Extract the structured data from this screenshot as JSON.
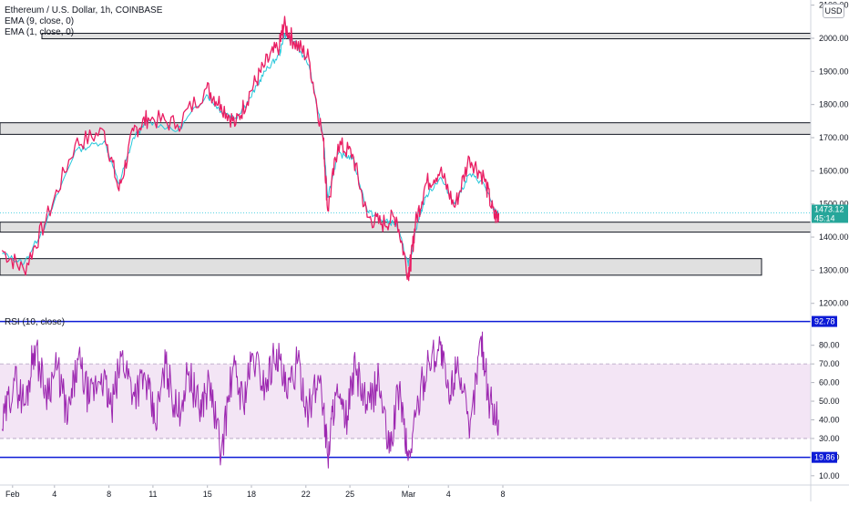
{
  "header": {
    "title": "Ethereum / U.S. Dollar, 1h, COINBASE",
    "indicators": [
      "EMA (9, close, 0)",
      "EMA (1, close, 0)"
    ],
    "currency_badge": "USD"
  },
  "rsi_panel": {
    "label": "RSI (10, close)",
    "upper_level_label": "92.78",
    "lower_level_label": "19.86"
  },
  "price_badge": {
    "price": "1473.12",
    "countdown": "45:14"
  },
  "colors": {
    "price_line": "#e91e63",
    "ema_line": "#26c6da",
    "rsi_line": "#9c27b0",
    "rsi_band": "#f3e5f5",
    "level_line": "#0d1bd6",
    "zone_fill": "#e0e0e0",
    "badge_bg": "#26a69a"
  },
  "chart_data": [
    {
      "type": "line",
      "title": "Ethereum / U.S. Dollar, 1h, COINBASE",
      "x_ticks": [
        "Feb",
        "4",
        "8",
        "11",
        "15",
        "18",
        "22",
        "25",
        "Mar",
        "4",
        "8"
      ],
      "y_ticks": [
        2100,
        2000,
        1900,
        1800,
        1700,
        1600,
        1500,
        1400,
        1300,
        1200
      ],
      "ylim": [
        1180,
        2110
      ],
      "last_price": 1473.12,
      "series": [
        {
          "name": "EMA (9, close, 0)",
          "role": "ema",
          "x": [
            0,
            1.5,
            3,
            5,
            7,
            8,
            9,
            10,
            12,
            14,
            15,
            16,
            17,
            18,
            19,
            19.3,
            20,
            21,
            22,
            22.3,
            23,
            24,
            25,
            26,
            27,
            27.8,
            28,
            28.3,
            29,
            30,
            31,
            32,
            33,
            33.7,
            34
          ],
          "values": [
            1350,
            1320,
            1440,
            1660,
            1690,
            1560,
            1700,
            1750,
            1720,
            1830,
            1780,
            1760,
            1820,
            1900,
            1950,
            2010,
            1990,
            1920,
            1700,
            1520,
            1650,
            1640,
            1480,
            1450,
            1440,
            1320,
            1340,
            1420,
            1520,
            1580,
            1500,
            1590,
            1560,
            1480,
            1470
          ]
        },
        {
          "name": "EMA (1, close, 0)",
          "role": "price",
          "x": [
            0,
            1.5,
            3,
            5,
            7,
            8,
            9,
            10,
            12,
            14,
            15,
            16,
            17,
            18,
            19,
            19.3,
            20,
            21,
            22,
            22.3,
            23,
            24,
            25,
            26,
            27,
            27.8,
            28,
            28.3,
            29,
            30,
            31,
            32,
            33,
            33.7,
            34
          ],
          "values": [
            1360,
            1300,
            1450,
            1680,
            1720,
            1540,
            1720,
            1760,
            1740,
            1850,
            1800,
            1740,
            1840,
            1920,
            1980,
            2040,
            1990,
            1940,
            1690,
            1480,
            1680,
            1650,
            1460,
            1440,
            1460,
            1290,
            1330,
            1440,
            1560,
            1600,
            1490,
            1640,
            1580,
            1460,
            1473
          ]
        }
      ],
      "zones": [
        {
          "from": 2000,
          "to": 2015,
          "x_start": 2
        },
        {
          "from": 1710,
          "to": 1745,
          "x_start": -1
        },
        {
          "from": 1415,
          "to": 1445,
          "x_start": -1
        },
        {
          "from": 1285,
          "to": 1335,
          "x_start": -1
        }
      ]
    },
    {
      "type": "line",
      "title": "RSI (10, close)",
      "y_ticks": [
        80,
        70,
        60,
        50,
        40,
        30,
        20,
        10
      ],
      "ylim": [
        6,
        96
      ],
      "band": [
        30,
        70
      ],
      "levels": [
        92.78,
        19.86
      ],
      "series": [
        {
          "name": "RSI (10, close)",
          "x": [
            0,
            0.8,
            1.6,
            2.2,
            3,
            3.8,
            4.5,
            5.2,
            6,
            6.8,
            7.5,
            8.2,
            9,
            9.8,
            10.5,
            11.2,
            12,
            12.8,
            13.5,
            14.2,
            15,
            15.8,
            16.5,
            17.2,
            18,
            18.8,
            19.5,
            20.2,
            21,
            21.8,
            22.3,
            22.8,
            23.5,
            24.2,
            25,
            25.8,
            26.5,
            27.2,
            27.8,
            28.5,
            29.2,
            30,
            30.6,
            31.2,
            32,
            32.8,
            33.4,
            34
          ],
          "values": [
            35,
            62,
            48,
            80,
            55,
            68,
            40,
            72,
            50,
            65,
            45,
            75,
            55,
            62,
            38,
            70,
            42,
            66,
            45,
            60,
            22,
            68,
            50,
            74,
            58,
            78,
            52,
            70,
            45,
            64,
            20,
            55,
            38,
            68,
            45,
            62,
            22,
            58,
            18,
            50,
            72,
            80,
            50,
            74,
            30,
            85,
            48,
            40
          ]
        }
      ]
    }
  ]
}
